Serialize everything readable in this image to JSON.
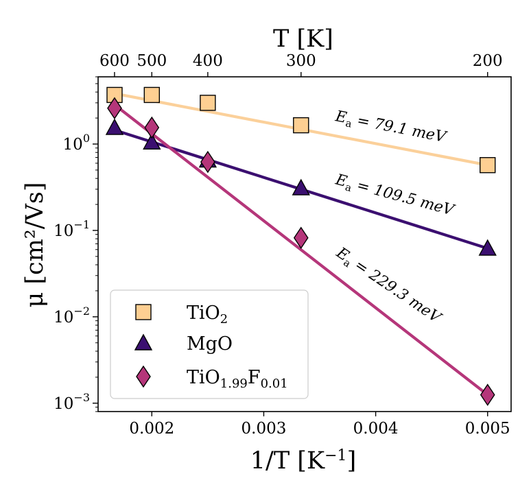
{
  "chart_data": {
    "type": "scatter",
    "xlabel": "1/T [K",
    "xlabel_sup": "−1",
    "xlabel_end": "]",
    "ylabel": "μ [cm²/Vs]",
    "top_axis_label": "T [K]",
    "x_ticks": [
      {
        "value": 0.002,
        "label": "0.002"
      },
      {
        "value": 0.003,
        "label": "0.003"
      },
      {
        "value": 0.004,
        "label": "0.004"
      },
      {
        "value": 0.005,
        "label": "0.005"
      }
    ],
    "top_ticks": [
      {
        "value": 600,
        "label": "600"
      },
      {
        "value": 500,
        "label": "500"
      },
      {
        "value": 400,
        "label": "400"
      },
      {
        "value": 300,
        "label": "300"
      },
      {
        "value": 200,
        "label": "200"
      }
    ],
    "y_ticks": [
      {
        "value": 1,
        "base": "10",
        "exp": "0"
      },
      {
        "value": 0.1,
        "base": "10",
        "exp": "−1"
      },
      {
        "value": 0.01,
        "base": "10",
        "exp": "−2"
      },
      {
        "value": 0.001,
        "base": "10",
        "exp": "−3"
      }
    ],
    "xlim": [
      0.00152,
      0.00521
    ],
    "ylim": [
      0.0008,
      6.0
    ],
    "yscale": "log",
    "legend_placement": "lower-left",
    "series": [
      {
        "name": "TiO",
        "name_sub": "2",
        "marker": "square",
        "color": "#fecf92",
        "line_color": "#fbd09a",
        "x": [
          0.001667,
          0.002,
          0.0025,
          0.003333,
          0.005
        ],
        "y": [
          3.7,
          3.7,
          3.0,
          1.65,
          0.57
        ],
        "fit": {
          "x": [
            0.001667,
            0.005
          ],
          "y": [
            3.85,
            0.57
          ]
        },
        "annotation": {
          "prefix": "E",
          "sub": "a",
          "text": " = 79.1 meV"
        }
      },
      {
        "name": "MgO",
        "name_sub": "",
        "marker": "triangle",
        "color": "#3b0f70",
        "line_color": "#3b0f70",
        "x": [
          0.001667,
          0.002,
          0.0025,
          0.003333,
          0.005
        ],
        "y": [
          1.55,
          1.05,
          0.65,
          0.31,
          0.062
        ],
        "fit": {
          "x": [
            0.001667,
            0.005
          ],
          "y": [
            1.45,
            0.062
          ]
        },
        "annotation": {
          "prefix": "E",
          "sub": "a",
          "text": " = 109.5 meV"
        }
      },
      {
        "name": "TiO",
        "name_sub": "1.99",
        "name_mid": "F",
        "name_sub2": "0.01",
        "marker": "diamond",
        "color": "#b5367a",
        "line_color": "#b5367a",
        "x": [
          0.001667,
          0.002,
          0.0025,
          0.003333,
          0.005
        ],
        "y": [
          2.6,
          1.55,
          0.62,
          0.082,
          0.00125
        ],
        "fit": {
          "x": [
            0.001667,
            0.005
          ],
          "y": [
            2.85,
            0.00125
          ]
        },
        "annotation": {
          "prefix": "E",
          "sub": "a",
          "text": " = 229.3 meV"
        }
      }
    ]
  }
}
